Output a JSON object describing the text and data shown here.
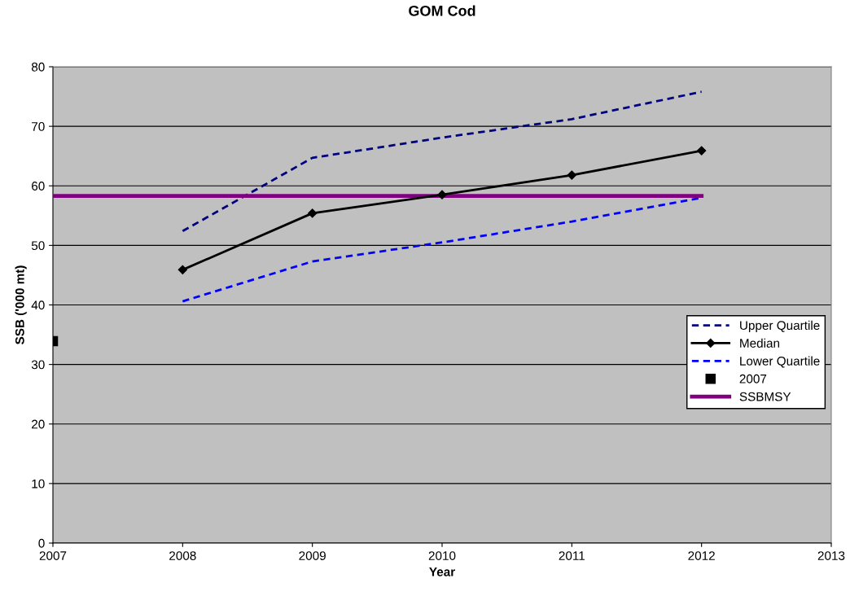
{
  "chart_data": {
    "type": "line",
    "title": "GOM Cod",
    "xlabel": "Year",
    "ylabel": "SSB ('000 mt)",
    "xlim": [
      2007,
      2013
    ],
    "xticks": [
      2007,
      2008,
      2009,
      2010,
      2011,
      2012,
      2013
    ],
    "ylim": [
      0,
      80
    ],
    "yticks": [
      0,
      10,
      20,
      30,
      40,
      50,
      60,
      70,
      80
    ],
    "grid": "y",
    "legend": "right",
    "series": [
      {
        "name": "Upper Quartile",
        "color": "#000080",
        "line_style": "dashed",
        "marker": "none",
        "x": [
          2008,
          2009,
          2010,
          2011,
          2012
        ],
        "values": [
          52.4,
          64.7,
          68.1,
          71.2,
          75.8
        ]
      },
      {
        "name": "Median",
        "color": "#000000",
        "line_style": "solid",
        "marker": "diamond",
        "x": [
          2008,
          2009,
          2010,
          2011,
          2012
        ],
        "values": [
          45.9,
          55.4,
          58.5,
          61.8,
          65.9
        ]
      },
      {
        "name": "Lower Quartile",
        "color": "#0000ff",
        "line_style": "dashed",
        "marker": "none",
        "x": [
          2008,
          2009,
          2010,
          2011,
          2012
        ],
        "values": [
          40.6,
          47.3,
          50.5,
          54.0,
          58.0
        ]
      },
      {
        "name": "2007",
        "type": "scatter",
        "color": "#000000",
        "marker": "square",
        "x": [
          2007
        ],
        "values": [
          33.9
        ]
      },
      {
        "name": "SSBMSY",
        "color": "#800080",
        "line_style": "solid",
        "marker": "none",
        "x": [
          2007,
          2012
        ],
        "values": [
          58.3,
          58.3
        ]
      }
    ]
  }
}
